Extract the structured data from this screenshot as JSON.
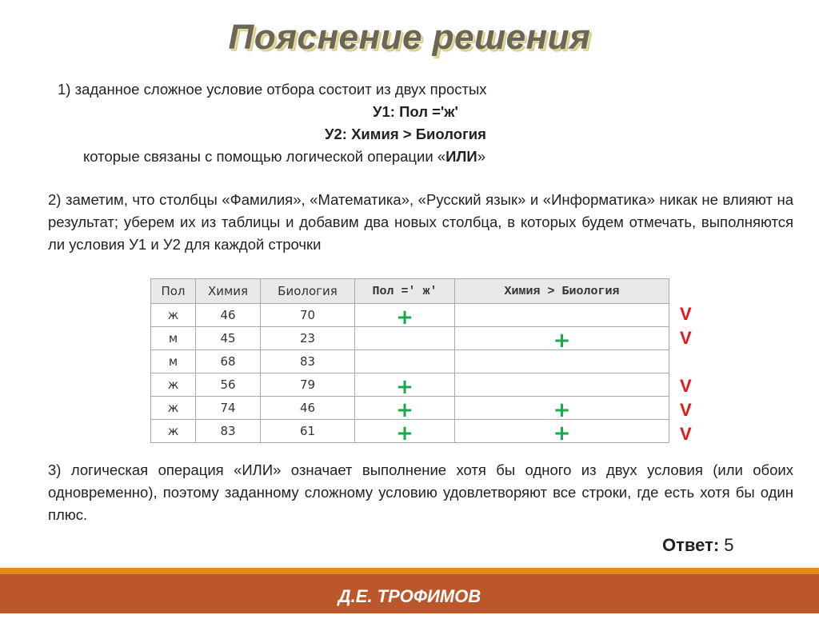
{
  "title": "Пояснение решения",
  "p1": {
    "line1": "1) заданное сложное условие отбора состоит из двух простых",
    "y1": "У1: Пол ='ж'",
    "y2": "У2: Химия > Биология",
    "line4_pre": "которые связаны с помощью логической операции «",
    "line4_bold": "ИЛИ",
    "line4_post": "»"
  },
  "p2": "2) заметим, что столбцы «Фамилия», «Математика», «Русский язык» и «Информатика» никак не влияют на результат; уберем их из таблицы и добавим два новых столбца, в которых будем отмечать, выполняются ли условия У1 и У2 для каждой строчки",
  "table": {
    "headers": [
      "Пол",
      "Химия",
      "Биология",
      "Пол =' ж'",
      "Химия > Биология"
    ],
    "rows": [
      [
        "ж",
        "46",
        "70",
        "+",
        ""
      ],
      [
        "м",
        "45",
        "23",
        "",
        "+"
      ],
      [
        "м",
        "68",
        "83",
        "",
        ""
      ],
      [
        "ж",
        "56",
        "79",
        "+",
        ""
      ],
      [
        "ж",
        "74",
        "46",
        "+",
        "+"
      ],
      [
        "ж",
        "83",
        "61",
        "+",
        "+"
      ]
    ],
    "marks": [
      "V",
      "V",
      "",
      "V",
      "V",
      "V"
    ]
  },
  "p3": "3) логическая операция «ИЛИ» означает выполнение хотя бы одного из двух условия (или обоих одновременно), поэтому заданному сложному условию удовлетворяют все строки, где есть хотя бы один плюс.",
  "answer": {
    "label": "Ответ:",
    "value": "5"
  },
  "footer": "Д.Е. ТРОФИМОВ",
  "colors": {
    "plus": "#1aa94a",
    "mark": "#e8141a",
    "footer": "#bb572b",
    "stripe": "#e48b1e"
  }
}
